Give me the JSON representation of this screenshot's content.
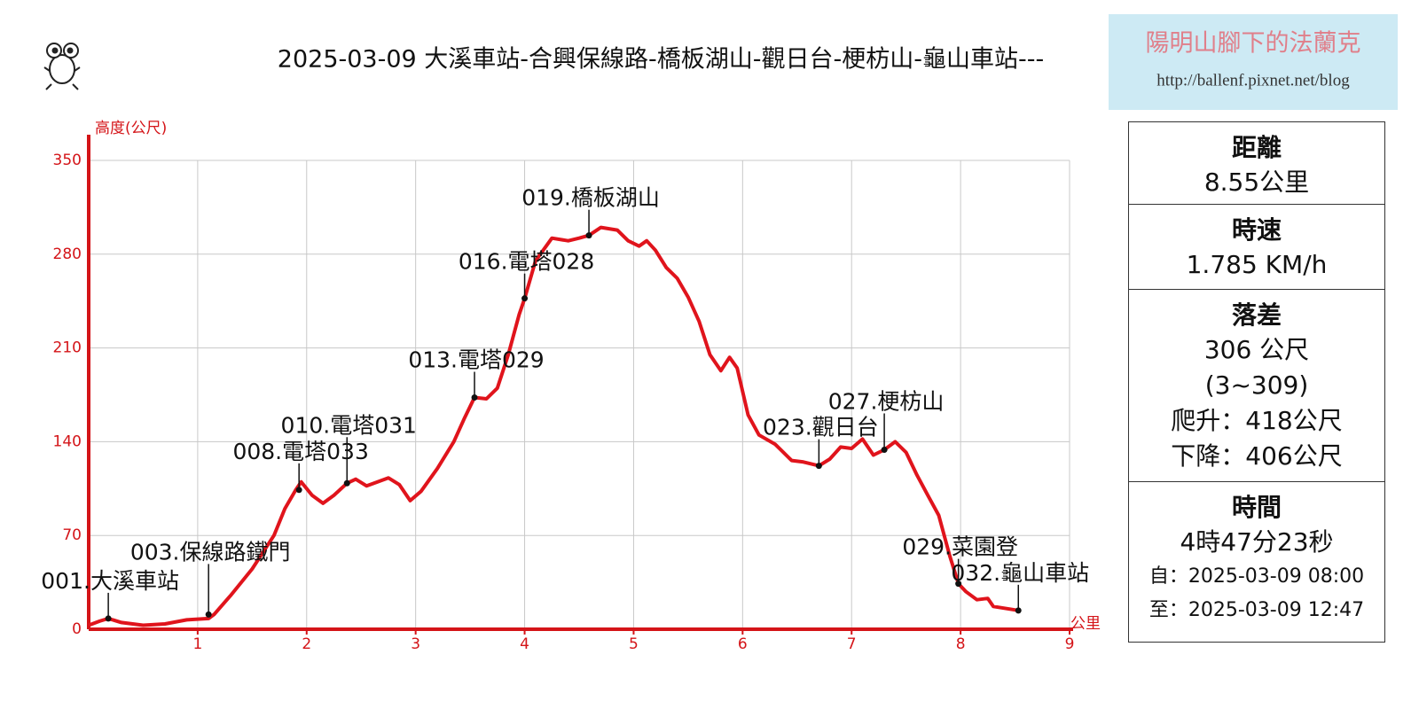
{
  "chart_data": {
    "type": "line",
    "title": "2025-03-09 大溪車站-合興保線路-橋板湖山-觀日台-梗枋山-龜山車站---",
    "ylabel": "高度(公尺)",
    "xlabel": "公里",
    "xlim": [
      0,
      9
    ],
    "xticks": [
      1,
      2,
      3,
      4,
      5,
      6,
      7,
      8,
      9
    ],
    "ylim": [
      0,
      350
    ],
    "yticks": [
      0,
      70,
      140,
      210,
      280,
      350
    ],
    "grid": true,
    "series": [
      {
        "color": "#e0141c",
        "x": [
          0,
          0.1,
          0.18,
          0.3,
          0.5,
          0.7,
          0.9,
          1.1,
          1.15,
          1.3,
          1.5,
          1.7,
          1.8,
          1.9,
          1.95,
          2.05,
          2.15,
          2.25,
          2.37,
          2.45,
          2.55,
          2.65,
          2.75,
          2.85,
          2.95,
          3.05,
          3.2,
          3.35,
          3.45,
          3.54,
          3.65,
          3.75,
          3.85,
          3.95,
          4.0,
          4.1,
          4.25,
          4.4,
          4.5,
          4.59,
          4.7,
          4.85,
          4.95,
          5.05,
          5.12,
          5.2,
          5.3,
          5.4,
          5.5,
          5.6,
          5.7,
          5.8,
          5.88,
          5.95,
          6.05,
          6.15,
          6.3,
          6.45,
          6.55,
          6.7,
          6.8,
          6.9,
          7.0,
          7.1,
          7.2,
          7.3,
          7.4,
          7.5,
          7.6,
          7.7,
          7.8,
          7.9,
          7.98,
          8.05,
          8.15,
          8.25,
          8.3,
          8.53
        ],
        "values": [
          3,
          6,
          8,
          5,
          3,
          4,
          7,
          8,
          11,
          25,
          45,
          70,
          90,
          104,
          110,
          100,
          94,
          100,
          109,
          112,
          107,
          110,
          113,
          108,
          96,
          103,
          120,
          140,
          158,
          173,
          172,
          180,
          205,
          235,
          247,
          275,
          292,
          290,
          292,
          294,
          300,
          298,
          290,
          286,
          290,
          283,
          270,
          262,
          248,
          230,
          205,
          193,
          203,
          195,
          160,
          145,
          138,
          126,
          125,
          122,
          127,
          136,
          135,
          142,
          130,
          134,
          140,
          132,
          115,
          100,
          85,
          55,
          34,
          28,
          22,
          23,
          17,
          14
        ]
      }
    ],
    "annotations": [
      {
        "label": "001.大溪車站",
        "x": 0.18,
        "y": 8
      },
      {
        "label": "003.保線路鐵門",
        "x": 1.1,
        "y": 11
      },
      {
        "label": "008.電塔033",
        "x": 1.93,
        "y": 104
      },
      {
        "label": "010.電塔031",
        "x": 2.37,
        "y": 109
      },
      {
        "label": "013.電塔029",
        "x": 3.54,
        "y": 173
      },
      {
        "label": "016.電塔028",
        "x": 4.0,
        "y": 247
      },
      {
        "label": "019.橋板湖山",
        "x": 4.59,
        "y": 294
      },
      {
        "label": "023.觀日台",
        "x": 6.7,
        "y": 122
      },
      {
        "label": "027.梗枋山",
        "x": 7.3,
        "y": 134
      },
      {
        "label": "029.菜園登",
        "x": 7.98,
        "y": 34
      },
      {
        "label": "032.龜山車站",
        "x": 8.53,
        "y": 14
      }
    ]
  },
  "watermark": {
    "name": "陽明山腳下的法蘭克",
    "url": "http://ballenf.pixnet.net/blog"
  },
  "stats": [
    {
      "label": "距離",
      "lines": [
        "8.55公里"
      ]
    },
    {
      "label": "時速",
      "lines": [
        "1.785 KM/h"
      ]
    },
    {
      "label": "落差",
      "lines": [
        "306 公尺",
        "(3~309)",
        "爬升：418公尺",
        "下降：406公尺"
      ]
    },
    {
      "label": "時間",
      "lines": [
        "4時47分23秒"
      ],
      "small": [
        "自：2025-03-09 08:00",
        "至：2025-03-09 12:47"
      ]
    }
  ]
}
